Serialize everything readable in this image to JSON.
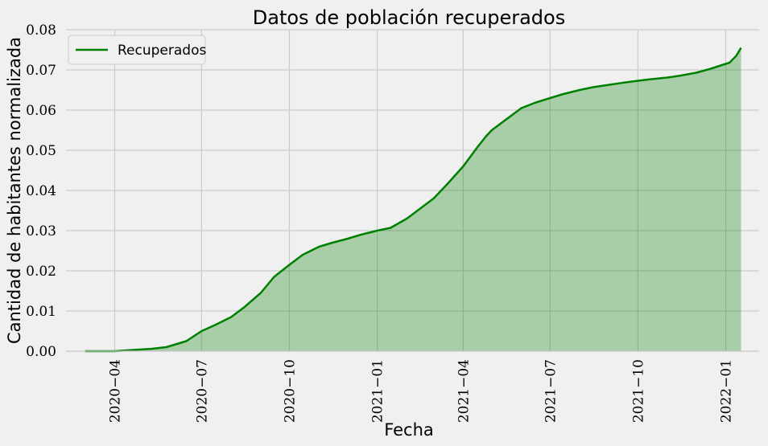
{
  "chart_data": {
    "type": "area",
    "title": "Datos de población recuperados",
    "xlabel": "Fecha",
    "ylabel": "Cantidad de habitantes normalizada",
    "x_range": [
      "2020-02-10",
      "2022-02-05"
    ],
    "ylim": [
      0,
      0.08
    ],
    "yticks": [
      "0.00",
      "0.01",
      "0.02",
      "0.03",
      "0.04",
      "0.05",
      "0.06",
      "0.07",
      "0.08"
    ],
    "xticks": [
      {
        "date": "2020-04-01",
        "label": "2020−04"
      },
      {
        "date": "2020-07-01",
        "label": "2020−07"
      },
      {
        "date": "2020-10-01",
        "label": "2020−10"
      },
      {
        "date": "2021-01-01",
        "label": "2021−01"
      },
      {
        "date": "2021-04-01",
        "label": "2021−04"
      },
      {
        "date": "2021-07-01",
        "label": "2021−07"
      },
      {
        "date": "2021-10-01",
        "label": "2021−10"
      },
      {
        "date": "2022-01-01",
        "label": "2022−01"
      }
    ],
    "grid": true,
    "legend_position": "top-left",
    "series": [
      {
        "name": "Recuperados",
        "color": "#008000",
        "fill_color": "#008000",
        "fill_opacity": 0.3,
        "points": [
          [
            "2020-03-01",
            0.0
          ],
          [
            "2020-04-01",
            0.0
          ],
          [
            "2020-04-20",
            0.0003
          ],
          [
            "2020-05-10",
            0.0006
          ],
          [
            "2020-05-25",
            0.001
          ],
          [
            "2020-06-01",
            0.0015
          ],
          [
            "2020-06-15",
            0.0025
          ],
          [
            "2020-07-01",
            0.005
          ],
          [
            "2020-07-15",
            0.0065
          ],
          [
            "2020-08-01",
            0.0085
          ],
          [
            "2020-08-15",
            0.011
          ],
          [
            "2020-09-01",
            0.0145
          ],
          [
            "2020-09-15",
            0.0185
          ],
          [
            "2020-10-01",
            0.0215
          ],
          [
            "2020-10-15",
            0.024
          ],
          [
            "2020-11-01",
            0.026
          ],
          [
            "2020-11-15",
            0.027
          ],
          [
            "2020-12-01",
            0.028
          ],
          [
            "2020-12-15",
            0.029
          ],
          [
            "2021-01-01",
            0.03
          ],
          [
            "2021-01-15",
            0.0307
          ],
          [
            "2021-02-01",
            0.033
          ],
          [
            "2021-02-15",
            0.0355
          ],
          [
            "2021-03-01",
            0.038
          ],
          [
            "2021-03-15",
            0.0415
          ],
          [
            "2021-04-01",
            0.046
          ],
          [
            "2021-04-15",
            0.0505
          ],
          [
            "2021-04-25",
            0.0535
          ],
          [
            "2021-05-01",
            0.055
          ],
          [
            "2021-05-15",
            0.0575
          ],
          [
            "2021-06-01",
            0.0605
          ],
          [
            "2021-06-15",
            0.0618
          ],
          [
            "2021-07-01",
            0.063
          ],
          [
            "2021-07-15",
            0.064
          ],
          [
            "2021-08-01",
            0.065
          ],
          [
            "2021-08-15",
            0.0657
          ],
          [
            "2021-09-01",
            0.0663
          ],
          [
            "2021-09-15",
            0.0668
          ],
          [
            "2021-10-01",
            0.0673
          ],
          [
            "2021-10-15",
            0.0677
          ],
          [
            "2021-11-01",
            0.0681
          ],
          [
            "2021-11-15",
            0.0686
          ],
          [
            "2021-12-01",
            0.0693
          ],
          [
            "2021-12-15",
            0.0702
          ],
          [
            "2021-12-28",
            0.0712
          ],
          [
            "2022-01-05",
            0.0718
          ],
          [
            "2022-01-12",
            0.0735
          ],
          [
            "2022-01-17",
            0.0755
          ]
        ]
      }
    ]
  }
}
